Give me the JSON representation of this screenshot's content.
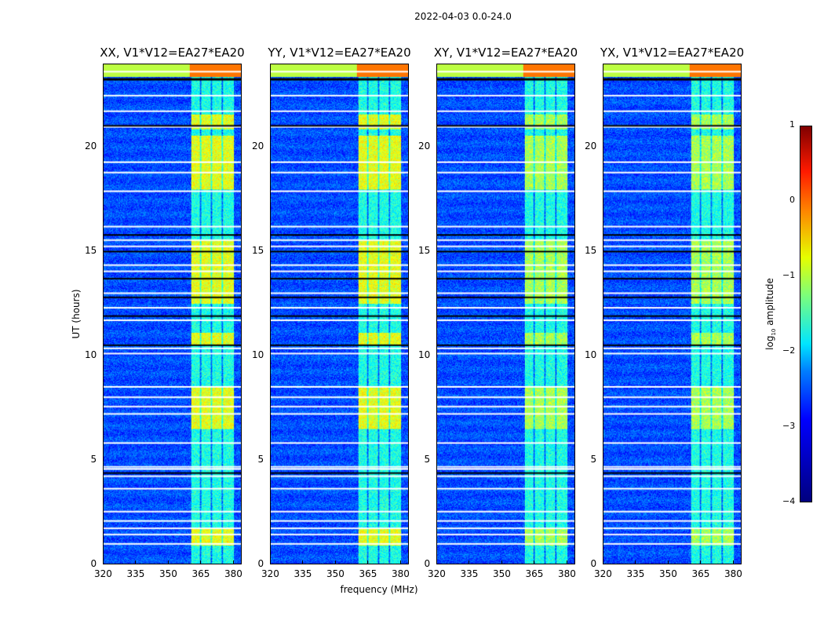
{
  "chart_data": {
    "type": "heatmap",
    "title": "2022-04-03 0.0-24.0",
    "xlabel": "frequency (MHz)",
    "ylabel": "UT (hours)",
    "xlim": [
      320,
      384
    ],
    "ylim": [
      0,
      24
    ],
    "xticks": [
      320,
      335,
      350,
      365,
      380
    ],
    "yticks": [
      0,
      5,
      10,
      15,
      20
    ],
    "panels": [
      {
        "title": "XX, V1*V12=EA27*EA20"
      },
      {
        "title": "YY, V1*V12=EA27*EA20"
      },
      {
        "title": "XY, V1*V12=EA27*EA20"
      },
      {
        "title": "YX, V1*V12=EA27*EA20"
      }
    ],
    "colorbar": {
      "label": "log",
      "label_sub": "10",
      "label_suffix": " amplitude",
      "range": [
        -4,
        1
      ],
      "ticks": [
        "1",
        "0",
        "−1",
        "−2",
        "−3",
        "−4"
      ],
      "tick_values": [
        1,
        0,
        -1,
        -2,
        -3,
        -4
      ],
      "colormap": "jet"
    },
    "background_level": -3.0,
    "rfi_band_mhz": [
      360.5,
      380.5
    ],
    "rfi_subband_gaps_mhz": [
      365,
      370,
      375
    ],
    "strong_rfi_hours": [
      [
        0.9,
        1.7
      ],
      [
        6.5,
        8.5
      ],
      [
        10.5,
        11.1
      ],
      [
        12.5,
        15.6
      ],
      [
        18.0,
        20.6
      ],
      [
        20.9,
        21.6
      ],
      [
        23.4,
        24.0
      ]
    ],
    "flagged_white_hours": [
      0.95,
      1.4,
      1.7,
      2.05,
      2.5,
      3.6,
      4.2,
      4.55,
      4.65,
      5.8,
      7.2,
      7.55,
      8.0,
      8.5,
      10.1,
      10.35,
      11.7,
      12.3,
      13.0,
      14.05,
      14.35,
      15.25,
      15.55,
      16.2,
      17.9,
      18.8,
      19.3,
      21.0,
      21.75,
      22.5,
      23.65
    ],
    "flagged_black_hours": [
      4.35,
      10.5,
      11.9,
      12.8,
      13.7,
      15.0,
      15.8,
      21.05,
      23.3
    ]
  }
}
